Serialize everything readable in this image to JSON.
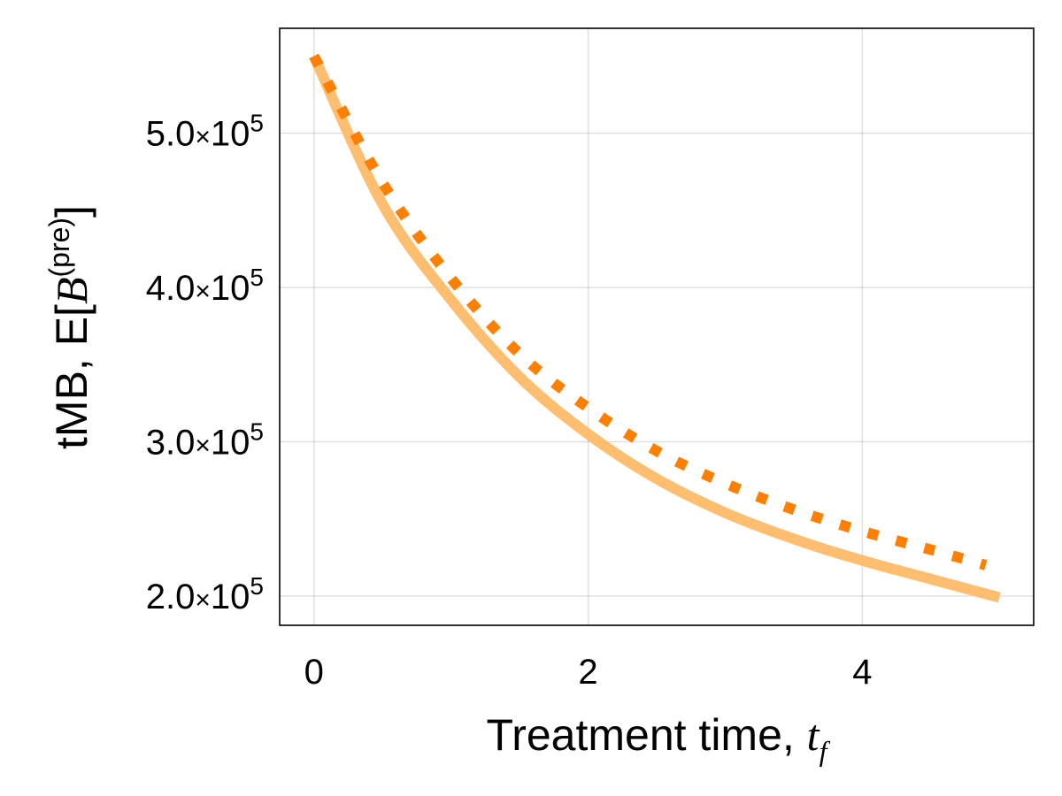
{
  "chart_data": {
    "type": "line",
    "xlabel": {
      "text": "Treatment time, ",
      "math": "t",
      "math_sub": "f"
    },
    "ylabel": {
      "text": "tMB, E[",
      "math": "B",
      "sup": "(pre)",
      "close": "]"
    },
    "xlim": [
      -0.25,
      5.25
    ],
    "ylim": [
      181000,
      568000
    ],
    "grid": true,
    "x_ticks": [
      {
        "value": 0,
        "label": "0"
      },
      {
        "value": 2,
        "label": "2"
      },
      {
        "value": 4,
        "label": "4"
      }
    ],
    "y_ticks": [
      {
        "value": 200000,
        "mantissa": "2.0",
        "times": "×10",
        "exp": "5"
      },
      {
        "value": 300000,
        "mantissa": "3.0",
        "times": "×10",
        "exp": "5"
      },
      {
        "value": 400000,
        "mantissa": "4.0",
        "times": "×10",
        "exp": "5"
      },
      {
        "value": 500000,
        "mantissa": "5.0",
        "times": "×10",
        "exp": "5"
      }
    ],
    "series": [
      {
        "style": "solid",
        "color": "#FDBF6F",
        "x": [
          0,
          0.5,
          1.0,
          1.5,
          2.0,
          2.5,
          3.0,
          3.5,
          4.0,
          4.5,
          5.0
        ],
        "y": [
          550000,
          454000,
          392000,
          342000,
          305000,
          276000,
          254000,
          237000,
          223000,
          211000,
          199000
        ]
      },
      {
        "style": "dotted",
        "color": "#FF7F00",
        "x": [
          0,
          0.5,
          1.0,
          1.5,
          2.0,
          2.5,
          3.0,
          3.5,
          4.0,
          4.5,
          4.9
        ],
        "y": [
          550000,
          468000,
          406000,
          357000,
          322000,
          294000,
          273000,
          256000,
          242000,
          230000,
          220000
        ]
      }
    ]
  }
}
